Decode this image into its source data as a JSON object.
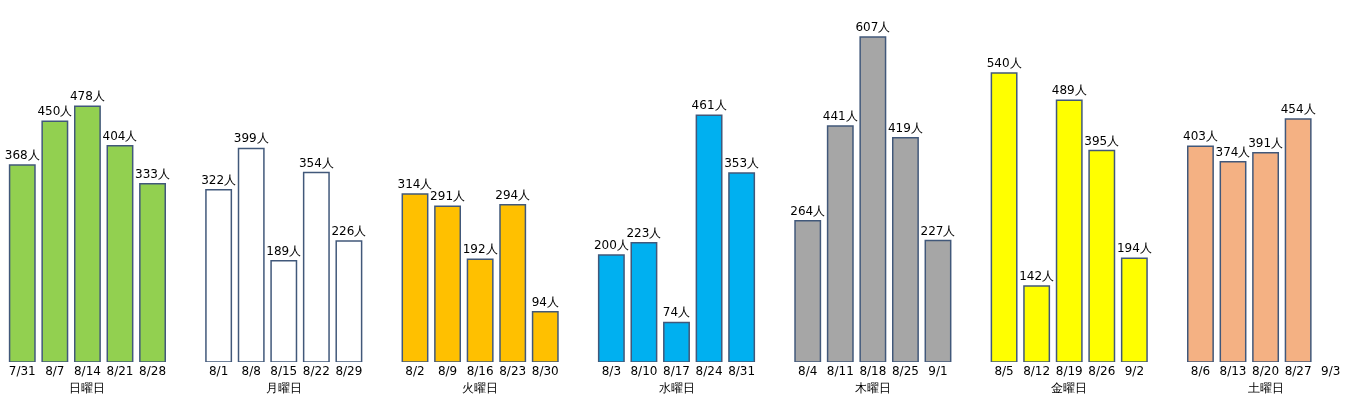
{
  "chart_data": [
    {
      "type": "bar",
      "xlabel": "日曜日",
      "categories": [
        "7/31",
        "8/7",
        "8/14",
        "8/21",
        "8/28"
      ],
      "tick_labels": "x",
      "series": [
        {
          "color": "#92d050",
          "values": [
            368,
            450,
            478,
            404,
            333
          ],
          "value_labels": [
            "368人",
            "450人",
            "478人",
            "404人",
            "333人"
          ]
        }
      ]
    },
    {
      "type": "bar",
      "xlabel": "月曜日",
      "categories": [
        "8/1",
        "8/8",
        "8/15",
        "8/22",
        "8/29"
      ],
      "tick_labels": "x",
      "series": [
        {
          "color": "#ffffff",
          "values": [
            322,
            399,
            189,
            354,
            226
          ],
          "value_labels": [
            "322人",
            "399人",
            "189人",
            "354人",
            "226人"
          ]
        }
      ]
    },
    {
      "type": "bar",
      "xlabel": "火曜日",
      "categories": [
        "8/2",
        "8/9",
        "8/16",
        "8/23",
        "8/30"
      ],
      "tick_labels": "x",
      "series": [
        {
          "color": "#ffc000",
          "values": [
            314,
            291,
            192,
            294,
            94
          ],
          "value_labels": [
            "314人",
            "291人",
            "192人",
            "294人",
            "94人"
          ]
        }
      ]
    },
    {
      "type": "bar",
      "xlabel": "水曜日",
      "categories": [
        "8/3",
        "8/10",
        "8/17",
        "8/24",
        "8/31"
      ],
      "tick_labels": "x",
      "series": [
        {
          "color": "#00b0f0",
          "values": [
            200,
            223,
            74,
            461,
            353
          ],
          "value_labels": [
            "200人",
            "223人",
            "74人",
            "461人",
            "353人"
          ]
        }
      ]
    },
    {
      "type": "bar",
      "xlabel": "木曜日",
      "categories": [
        "8/4",
        "8/11",
        "8/18",
        "8/25",
        "9/1"
      ],
      "tick_labels": "x",
      "series": [
        {
          "color": "#a6a6a6",
          "values": [
            264,
            441,
            607,
            419,
            227
          ],
          "value_labels": [
            "264人",
            "441人",
            "607人",
            "419人",
            "227人"
          ]
        }
      ]
    },
    {
      "type": "bar",
      "xlabel": "金曜日",
      "categories": [
        "8/5",
        "8/12",
        "8/19",
        "8/26",
        "9/2"
      ],
      "tick_labels": "x",
      "series": [
        {
          "color": "#ffff00",
          "values": [
            540,
            142,
            489,
            395,
            194
          ],
          "value_labels": [
            "540人",
            "142人",
            "489人",
            "395人",
            "194人"
          ]
        }
      ]
    },
    {
      "type": "bar",
      "xlabel": "土曜日",
      "categories": [
        "8/6",
        "8/13",
        "8/20",
        "8/27",
        "9/3"
      ],
      "tick_labels": "x",
      "series": [
        {
          "color": "#f4b183",
          "values": [
            403,
            374,
            391,
            454,
            null
          ],
          "value_labels": [
            "403人",
            "374人",
            "391人",
            "454人",
            null
          ]
        }
      ]
    }
  ]
}
